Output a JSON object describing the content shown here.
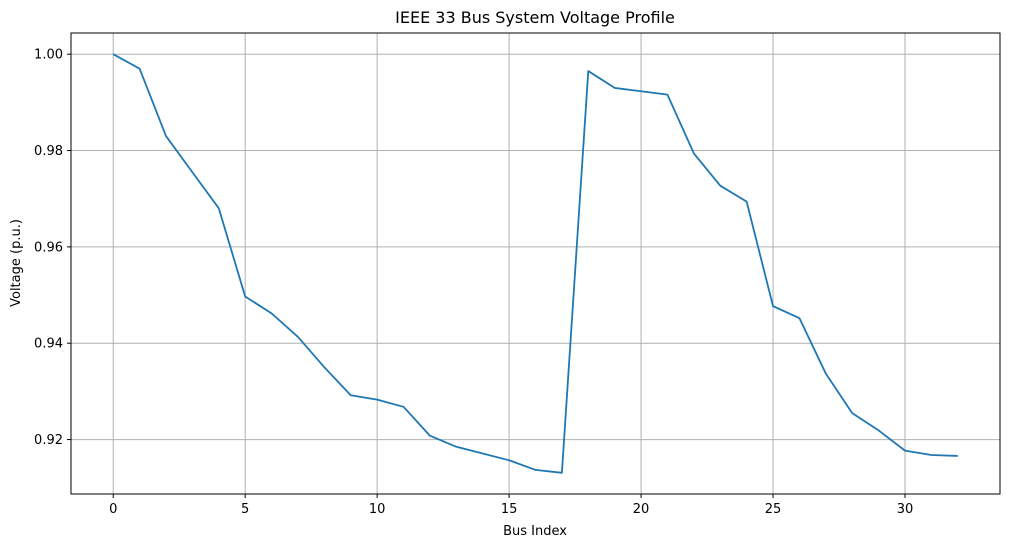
{
  "chart_data": {
    "type": "line",
    "title": "IEEE 33 Bus System Voltage Profile",
    "xlabel": "Bus Index",
    "ylabel": "Voltage (p.u.)",
    "xlim": [
      -1.6,
      33.6
    ],
    "ylim": [
      0.9087,
      1.0044
    ],
    "xticks": [
      0,
      5,
      10,
      15,
      20,
      25,
      30
    ],
    "yticks": [
      0.92,
      0.94,
      0.96,
      0.98,
      1.0
    ],
    "ytick_labels": [
      "0.92",
      "0.94",
      "0.96",
      "0.98",
      "1.00"
    ],
    "grid": true,
    "line_color": "#1f77b4",
    "series": [
      {
        "x": [
          0,
          1,
          2,
          3,
          4,
          5,
          6,
          7,
          8,
          9,
          10,
          11,
          12,
          13,
          14,
          15,
          16,
          17,
          18,
          19,
          20,
          21,
          22,
          23,
          24,
          25,
          26,
          27,
          28,
          29,
          30,
          31,
          32
        ],
        "values": [
          1.0,
          0.997,
          0.983,
          0.9755,
          0.968,
          0.9497,
          0.9462,
          0.9413,
          0.935,
          0.9292,
          0.9283,
          0.9268,
          0.9208,
          0.9185,
          0.9171,
          0.9157,
          0.9137,
          0.9131,
          0.9965,
          0.993,
          0.9923,
          0.9916,
          0.9794,
          0.9727,
          0.9694,
          0.9477,
          0.9452,
          0.9337,
          0.9255,
          0.9219,
          0.9177,
          0.9168,
          0.9166
        ]
      }
    ]
  }
}
